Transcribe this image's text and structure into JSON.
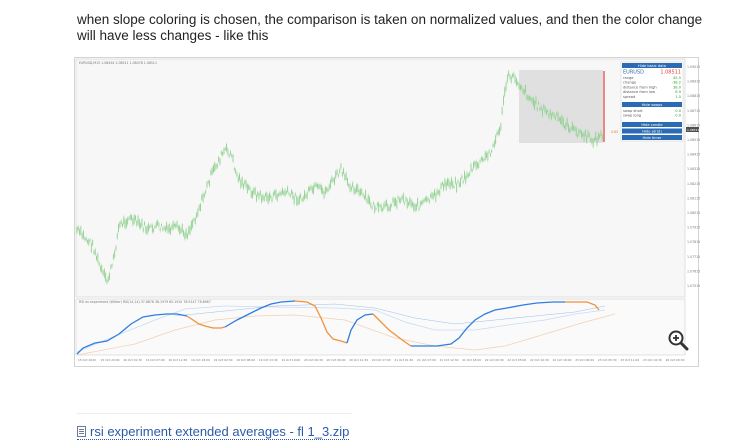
{
  "post": {
    "text": "when slope coloring is chosen, the comparison is taken on normalized values, and then the color change will have less changes - like this"
  },
  "chart": {
    "header_text": "EURUSD,M15 1.08494 1.08511 1.08478 1.08511",
    "indicator_title": "RSI ex experiment (Wilder) RSI(14,14) 37.8876 36.1979 65.1910 76.9147 76.8967",
    "price_ticks": [
      "1.09015",
      "1.08915",
      "1.08815",
      "1.08715",
      "1.08615",
      "1.08515",
      "1.08415",
      "1.08315",
      "1.08215",
      "1.08115",
      "1.08015",
      "1.07915",
      "1.07815",
      "1.07715",
      "1.07615",
      "1.07515"
    ],
    "time_ticks": [
      "15 Oct 2020",
      "15 Oct 20:00",
      "16 Oct 01:30",
      "16 Oct 07:00",
      "16 Oct 12:30",
      "16 Oct 18:00",
      "19 Oct 02:30",
      "19 Oct 08:00",
      "19 Oct 13:30",
      "19 Oct 19:00",
      "20 Oct 00:30",
      "20 Oct 06:00",
      "20 Oct 11:30",
      "20 Oct 17:00",
      "21 Oct 01:30",
      "21 Oct 07:00",
      "21 Oct 12:30",
      "21 Oct 18:00",
      "22 Oct 00:30",
      "22 Oct 05:00",
      "22 Oct 10:30",
      "22 Oct 16:00",
      "23 Oct 00:00",
      "23 Oct 05:30",
      "23 Oct 11:00",
      "23 Oct 16:30",
      "26 Oct 00:30"
    ],
    "price_label": "1.08511",
    "level_label": "0.85",
    "colors": {
      "candles": "#8fd08f",
      "rising": "#2f7de0",
      "falling": "#f3913a",
      "panel_header": "#2a6bb3",
      "tag_red": "#ea3b3b"
    },
    "info_panel": {
      "hide_basic": "Hide basic data",
      "symbol": "EURUSD",
      "price": "1.08511",
      "rows": [
        {
          "label": "range",
          "value": "45.5"
        },
        {
          "label": "change",
          "value": "-38.2"
        },
        {
          "label": "distance from high",
          "value": "38.0"
        },
        {
          "label": "distance from low",
          "value": "6.9"
        },
        {
          "label": "spread",
          "value": "1.5"
        }
      ],
      "hide_swaps": "Hide swaps",
      "swap_rows": [
        {
          "label": "swap short",
          "value": "0.0"
        },
        {
          "label": "swap long",
          "value": "0.0"
        }
      ],
      "hide_candle": "Hide candle",
      "hide_atr": "Hide atr(d)",
      "hide_timer": "Hide timer"
    }
  },
  "attachment": {
    "label": "rsi experiment extended averages - fl 1_3.zip"
  }
}
